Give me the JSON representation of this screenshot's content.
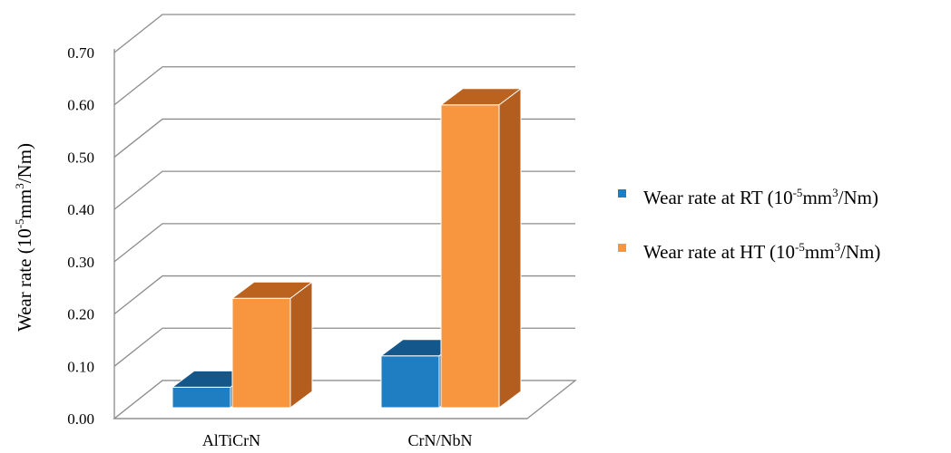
{
  "chart_data": {
    "type": "bar",
    "title": "",
    "xlabel": "",
    "ylabel": "Wear rate (10-5mm3/Nm)",
    "ylabel_parts": {
      "pre": "Wear rate (10",
      "exp1": "-5",
      "mid": "mm",
      "exp2": "3",
      "post": "/Nm)"
    },
    "ylim": [
      0,
      0.7
    ],
    "yticks": [
      "0.00",
      "0.10",
      "0.20",
      "0.30",
      "0.40",
      "0.50",
      "0.60",
      "0.70"
    ],
    "categories": [
      "AlTiCrN",
      "CrN/NbN"
    ],
    "series": [
      {
        "name": "Wear rate at RT (10-5mm3/Nm)",
        "label_parts": {
          "pre": "Wear rate at RT (10",
          "exp1": "-5",
          "mid": "mm",
          "exp2": "3",
          "post": "/Nm)"
        },
        "values": [
          0.06,
          0.12
        ],
        "color": "#1f7dc2",
        "top_color": "#14578a",
        "side_color": "#165f96"
      },
      {
        "name": "Wear rate at HT (10-5mm3/Nm)",
        "label_parts": {
          "pre": "Wear rate at HT (10",
          "exp1": "-5",
          "mid": "mm",
          "exp2": "3",
          "post": "/Nm)"
        },
        "values": [
          0.23,
          0.6
        ],
        "color": "#f7963f",
        "top_color": "#bc621f",
        "side_color": "#b35d1e"
      }
    ],
    "grid": true,
    "legend": "right",
    "style": "3d-column"
  }
}
